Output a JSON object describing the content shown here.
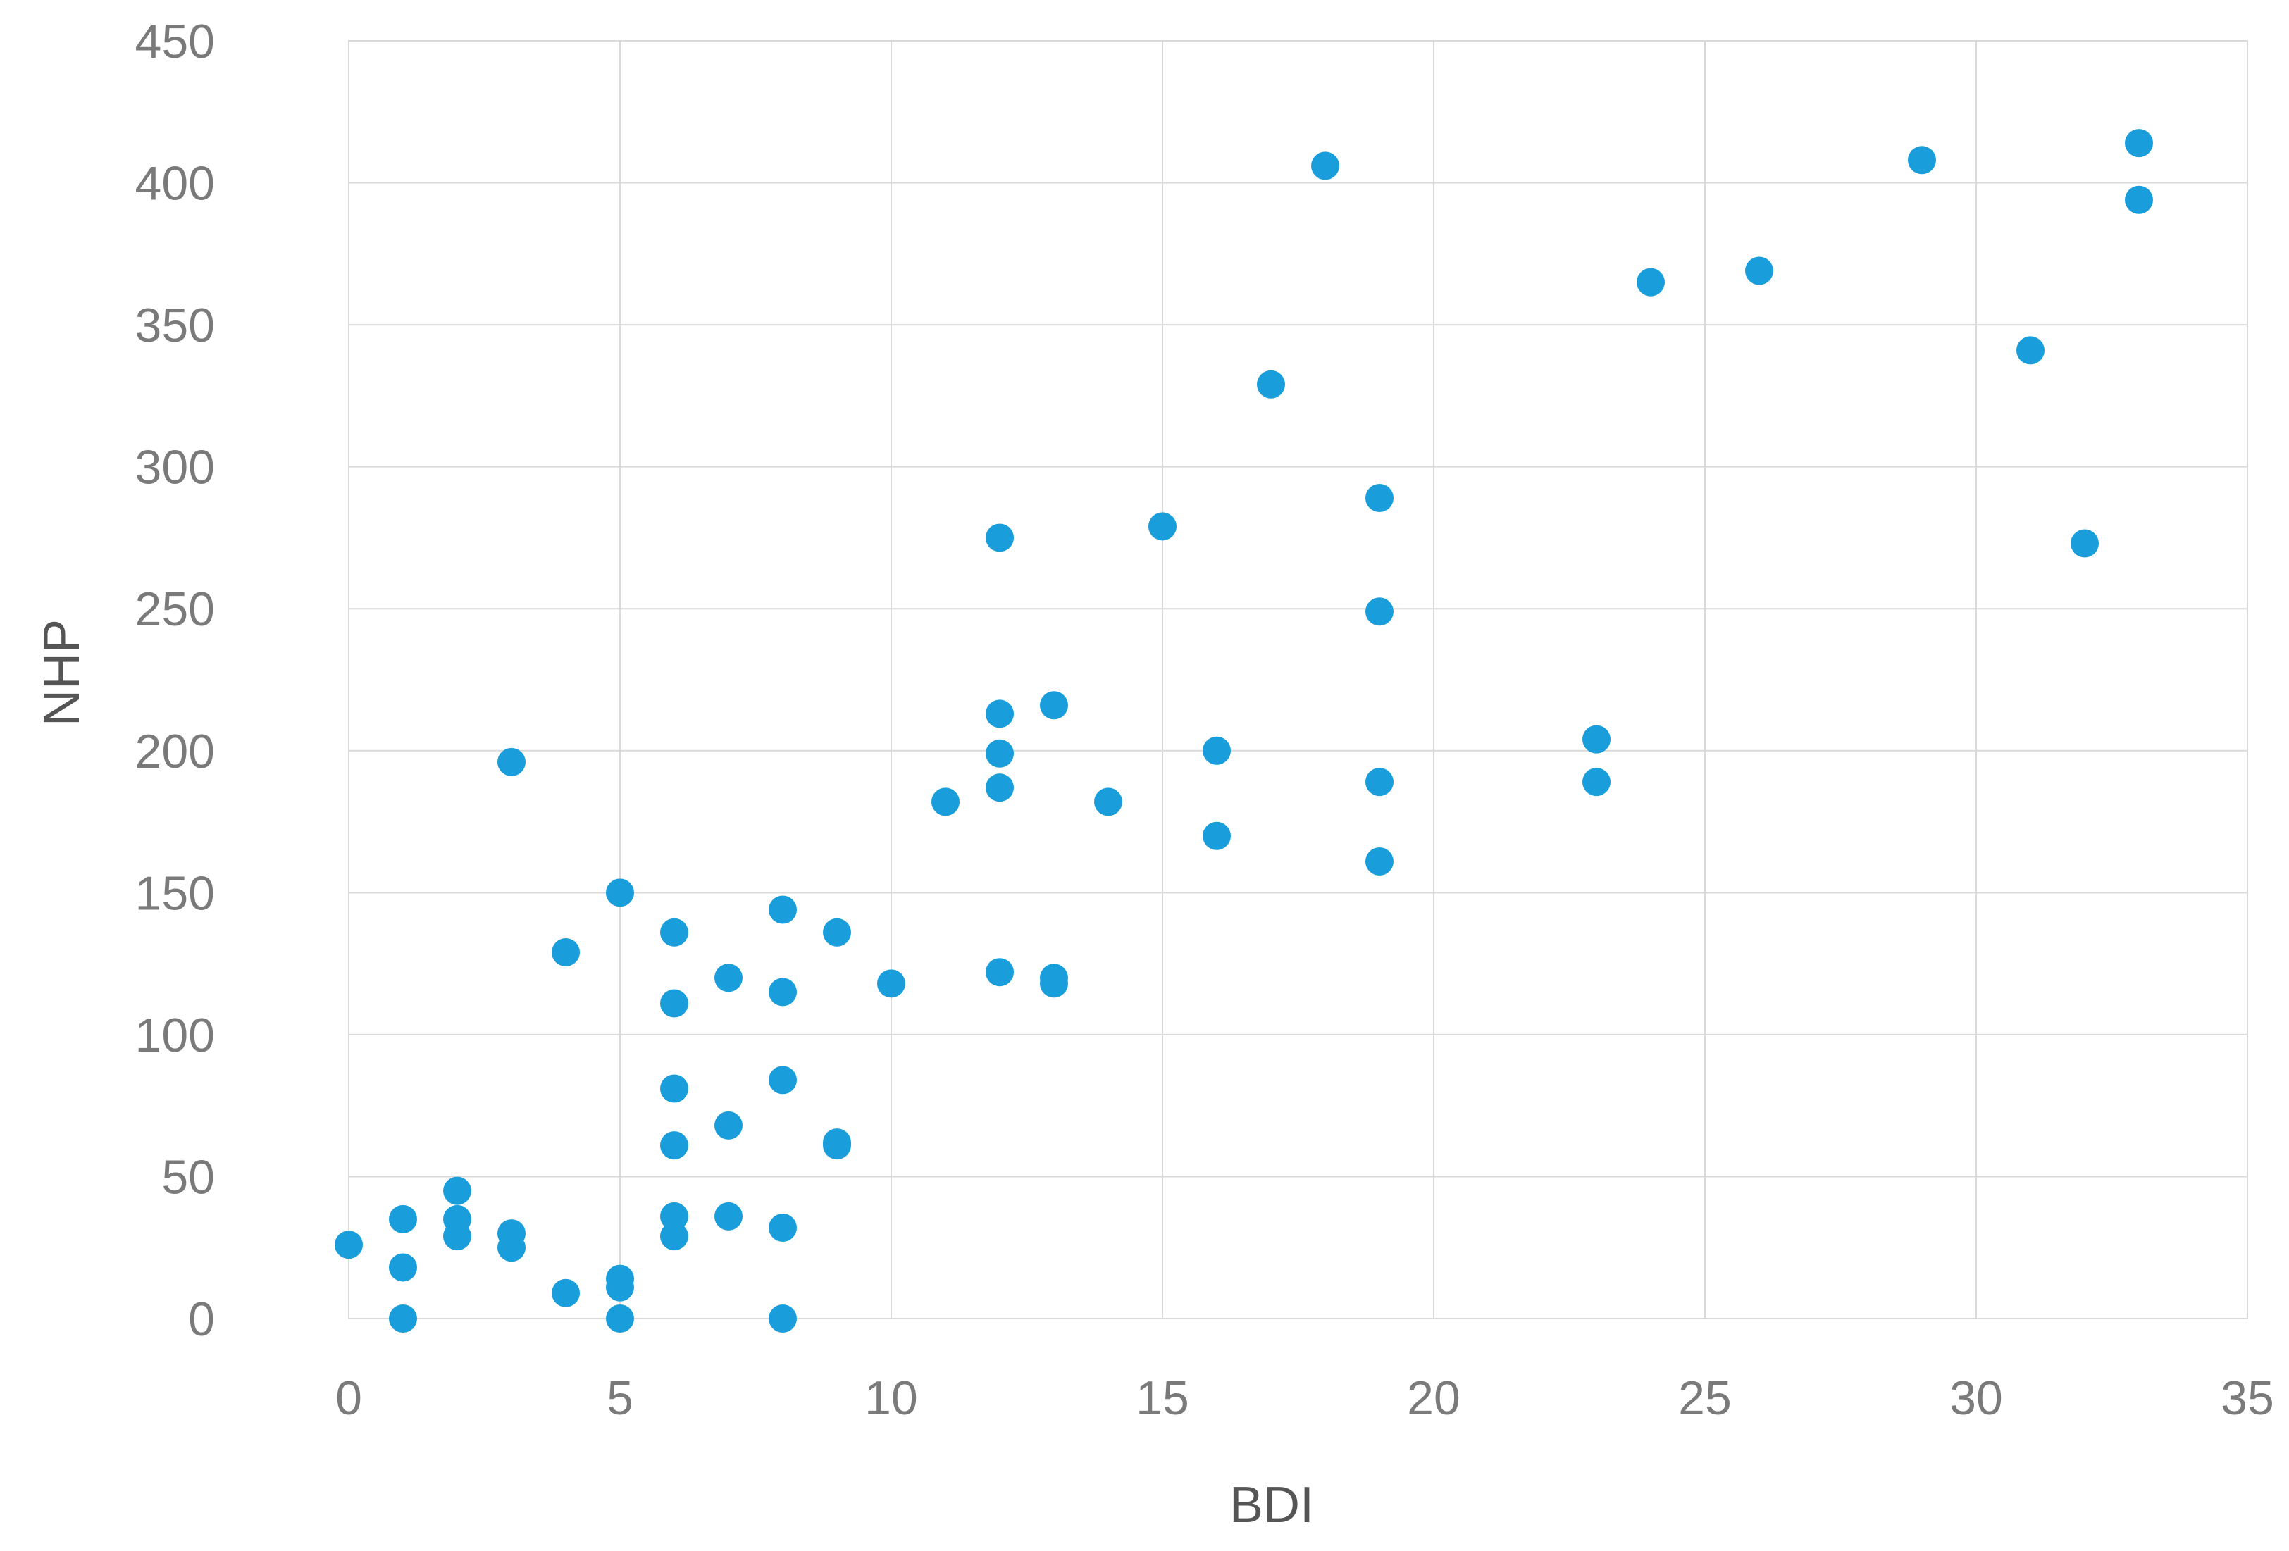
{
  "chart_data": {
    "type": "scatter",
    "xlabel": "BDI",
    "ylabel": "NHP",
    "xlim": [
      0,
      35
    ],
    "ylim": [
      0,
      450
    ],
    "x_ticks": [
      0,
      5,
      10,
      15,
      20,
      25,
      30,
      35
    ],
    "y_ticks": [
      0,
      50,
      100,
      150,
      200,
      250,
      300,
      350,
      400,
      450
    ],
    "x_tick_labels": [
      "0",
      "5",
      "10",
      "15",
      "20",
      "25",
      "30",
      "35"
    ],
    "y_tick_labels": [
      "0",
      "50",
      "100",
      "150",
      "200",
      "250",
      "300",
      "350",
      "400",
      "450"
    ],
    "grid": true,
    "legend": "none",
    "marker_color": "#1a9edb",
    "series": [
      {
        "points": [
          [
            0,
            26
          ],
          [
            1,
            35
          ],
          [
            1,
            18
          ],
          [
            1,
            0
          ],
          [
            2,
            45
          ],
          [
            2,
            35
          ],
          [
            2,
            29
          ],
          [
            3,
            196
          ],
          [
            3,
            30
          ],
          [
            3,
            25
          ],
          [
            4,
            129
          ],
          [
            4,
            9
          ],
          [
            5,
            150
          ],
          [
            5,
            14
          ],
          [
            5,
            11
          ],
          [
            5,
            0
          ],
          [
            6,
            136
          ],
          [
            6,
            111
          ],
          [
            6,
            81
          ],
          [
            6,
            61
          ],
          [
            6,
            36
          ],
          [
            6,
            29
          ],
          [
            7,
            120
          ],
          [
            7,
            68
          ],
          [
            7,
            36
          ],
          [
            8,
            144
          ],
          [
            8,
            115
          ],
          [
            8,
            84
          ],
          [
            8,
            32
          ],
          [
            8,
            0
          ],
          [
            9,
            136
          ],
          [
            9,
            62
          ],
          [
            9,
            61
          ],
          [
            10,
            118
          ],
          [
            11,
            182
          ],
          [
            12,
            275
          ],
          [
            12,
            213
          ],
          [
            12,
            199
          ],
          [
            12,
            187
          ],
          [
            12,
            122
          ],
          [
            13,
            216
          ],
          [
            13,
            120
          ],
          [
            13,
            118
          ],
          [
            14,
            182
          ],
          [
            15,
            279
          ],
          [
            16,
            200
          ],
          [
            16,
            170
          ],
          [
            17,
            329
          ],
          [
            18,
            406
          ],
          [
            19,
            289
          ],
          [
            19,
            249
          ],
          [
            19,
            189
          ],
          [
            19,
            161
          ],
          [
            23,
            204
          ],
          [
            23,
            189
          ],
          [
            24,
            365
          ],
          [
            26,
            369
          ],
          [
            29,
            408
          ],
          [
            31,
            341
          ],
          [
            32,
            273
          ],
          [
            33,
            414
          ],
          [
            33,
            394
          ]
        ]
      }
    ]
  }
}
